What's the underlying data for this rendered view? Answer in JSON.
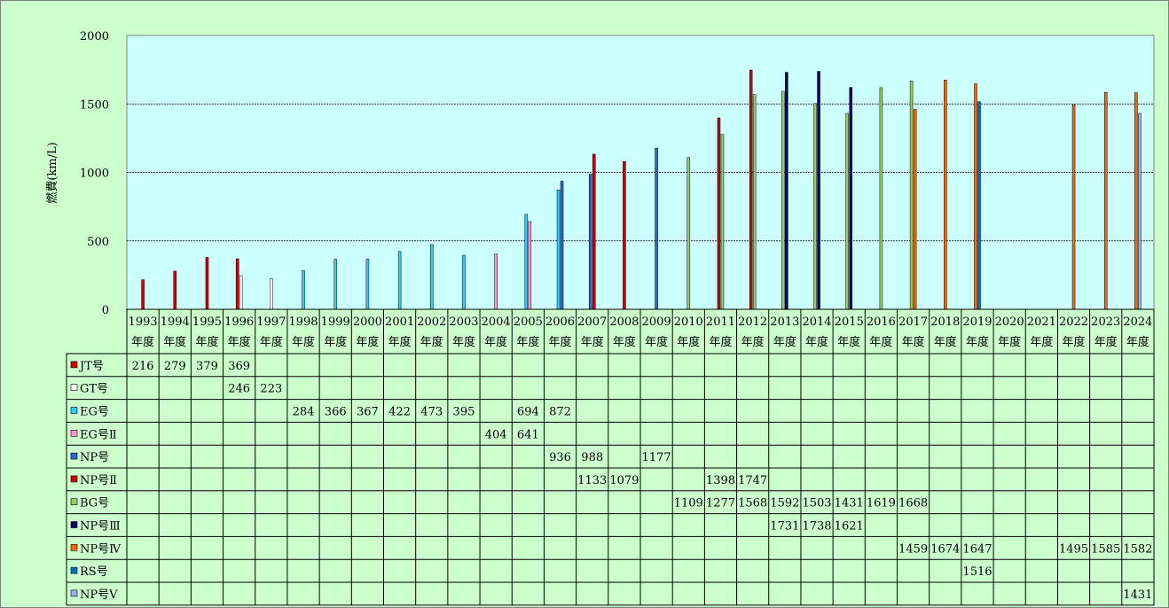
{
  "chart_data": {
    "type": "bar",
    "title": "",
    "ylabel": "燃費(km/L)",
    "xlabel": "",
    "ylim": [
      0,
      2000
    ],
    "yticks": [
      0,
      500,
      1000,
      1500,
      2000
    ],
    "grid": true,
    "categories": [
      "1993",
      "1994",
      "1995",
      "1996",
      "1997",
      "1998",
      "1999",
      "2000",
      "2001",
      "2002",
      "2003",
      "2004",
      "2005",
      "2006",
      "2007",
      "2008",
      "2009",
      "2010",
      "2011",
      "2012",
      "2013",
      "2014",
      "2015",
      "2016",
      "2017",
      "2018",
      "2019",
      "2020",
      "2021",
      "2022",
      "2023",
      "2024"
    ],
    "category_suffix": "年度",
    "legend_position": "table-below",
    "series": [
      {
        "name": "JT号",
        "color": "#cc0000",
        "values": [
          216,
          279,
          379,
          369,
          null,
          null,
          null,
          null,
          null,
          null,
          null,
          null,
          null,
          null,
          null,
          null,
          null,
          null,
          null,
          null,
          null,
          null,
          null,
          null,
          null,
          null,
          null,
          null,
          null,
          null,
          null,
          null
        ]
      },
      {
        "name": "GT号",
        "color": "#ffffff",
        "values": [
          null,
          null,
          null,
          246,
          223,
          null,
          null,
          null,
          null,
          null,
          null,
          null,
          null,
          null,
          null,
          null,
          null,
          null,
          null,
          null,
          null,
          null,
          null,
          null,
          null,
          null,
          null,
          null,
          null,
          null,
          null,
          null
        ]
      },
      {
        "name": "EG号",
        "color": "#33ccff",
        "values": [
          null,
          null,
          null,
          null,
          null,
          284,
          366,
          367,
          422,
          473,
          395,
          null,
          694,
          872,
          null,
          null,
          null,
          null,
          null,
          null,
          null,
          null,
          null,
          null,
          null,
          null,
          null,
          null,
          null,
          null,
          null,
          null
        ]
      },
      {
        "name": "EG号Ⅱ",
        "color": "#ff99cc",
        "values": [
          null,
          null,
          null,
          null,
          null,
          null,
          null,
          null,
          null,
          null,
          null,
          404,
          641,
          null,
          null,
          null,
          null,
          null,
          null,
          null,
          null,
          null,
          null,
          null,
          null,
          null,
          null,
          null,
          null,
          null,
          null,
          null
        ]
      },
      {
        "name": "NP号",
        "color": "#3366cc",
        "values": [
          null,
          null,
          null,
          null,
          null,
          null,
          null,
          null,
          null,
          null,
          null,
          null,
          null,
          936,
          988,
          null,
          1177,
          null,
          null,
          null,
          null,
          null,
          null,
          null,
          null,
          null,
          null,
          null,
          null,
          null,
          null,
          null
        ]
      },
      {
        "name": "NP号Ⅱ",
        "color": "#cc0000",
        "values": [
          null,
          null,
          null,
          null,
          null,
          null,
          null,
          null,
          null,
          null,
          null,
          null,
          null,
          null,
          1133,
          1079,
          null,
          null,
          1398,
          1747,
          null,
          null,
          null,
          null,
          null,
          null,
          null,
          null,
          null,
          null,
          null,
          null
        ]
      },
      {
        "name": "BG号",
        "color": "#99cc66",
        "values": [
          null,
          null,
          null,
          null,
          null,
          null,
          null,
          null,
          null,
          null,
          null,
          null,
          null,
          null,
          null,
          null,
          null,
          1109,
          1277,
          1568,
          1592,
          1503,
          1431,
          1619,
          1668,
          null,
          null,
          null,
          null,
          null,
          null,
          null
        ]
      },
      {
        "name": "NP号Ⅲ",
        "color": "#000066",
        "values": [
          null,
          null,
          null,
          null,
          null,
          null,
          null,
          null,
          null,
          null,
          null,
          null,
          null,
          null,
          null,
          null,
          null,
          null,
          null,
          null,
          1731,
          1738,
          1621,
          null,
          null,
          null,
          null,
          null,
          null,
          null,
          null,
          null
        ]
      },
      {
        "name": "NP号Ⅳ",
        "color": "#ff6600",
        "values": [
          null,
          null,
          null,
          null,
          null,
          null,
          null,
          null,
          null,
          null,
          null,
          null,
          null,
          null,
          null,
          null,
          null,
          null,
          null,
          null,
          null,
          null,
          null,
          null,
          1459,
          1674,
          1647,
          null,
          null,
          1495,
          1585,
          1582
        ]
      },
      {
        "name": "RS号",
        "color": "#0070c0",
        "values": [
          null,
          null,
          null,
          null,
          null,
          null,
          null,
          null,
          null,
          null,
          null,
          null,
          null,
          null,
          null,
          null,
          null,
          null,
          null,
          null,
          null,
          null,
          null,
          null,
          null,
          null,
          1516,
          null,
          null,
          null,
          null,
          null
        ]
      },
      {
        "name": "NP号Ⅴ",
        "color": "#99b3e6",
        "values": [
          null,
          null,
          null,
          null,
          null,
          null,
          null,
          null,
          null,
          null,
          null,
          null,
          null,
          null,
          null,
          null,
          null,
          null,
          null,
          null,
          null,
          null,
          null,
          null,
          null,
          null,
          null,
          null,
          null,
          null,
          null,
          1431
        ]
      }
    ]
  }
}
